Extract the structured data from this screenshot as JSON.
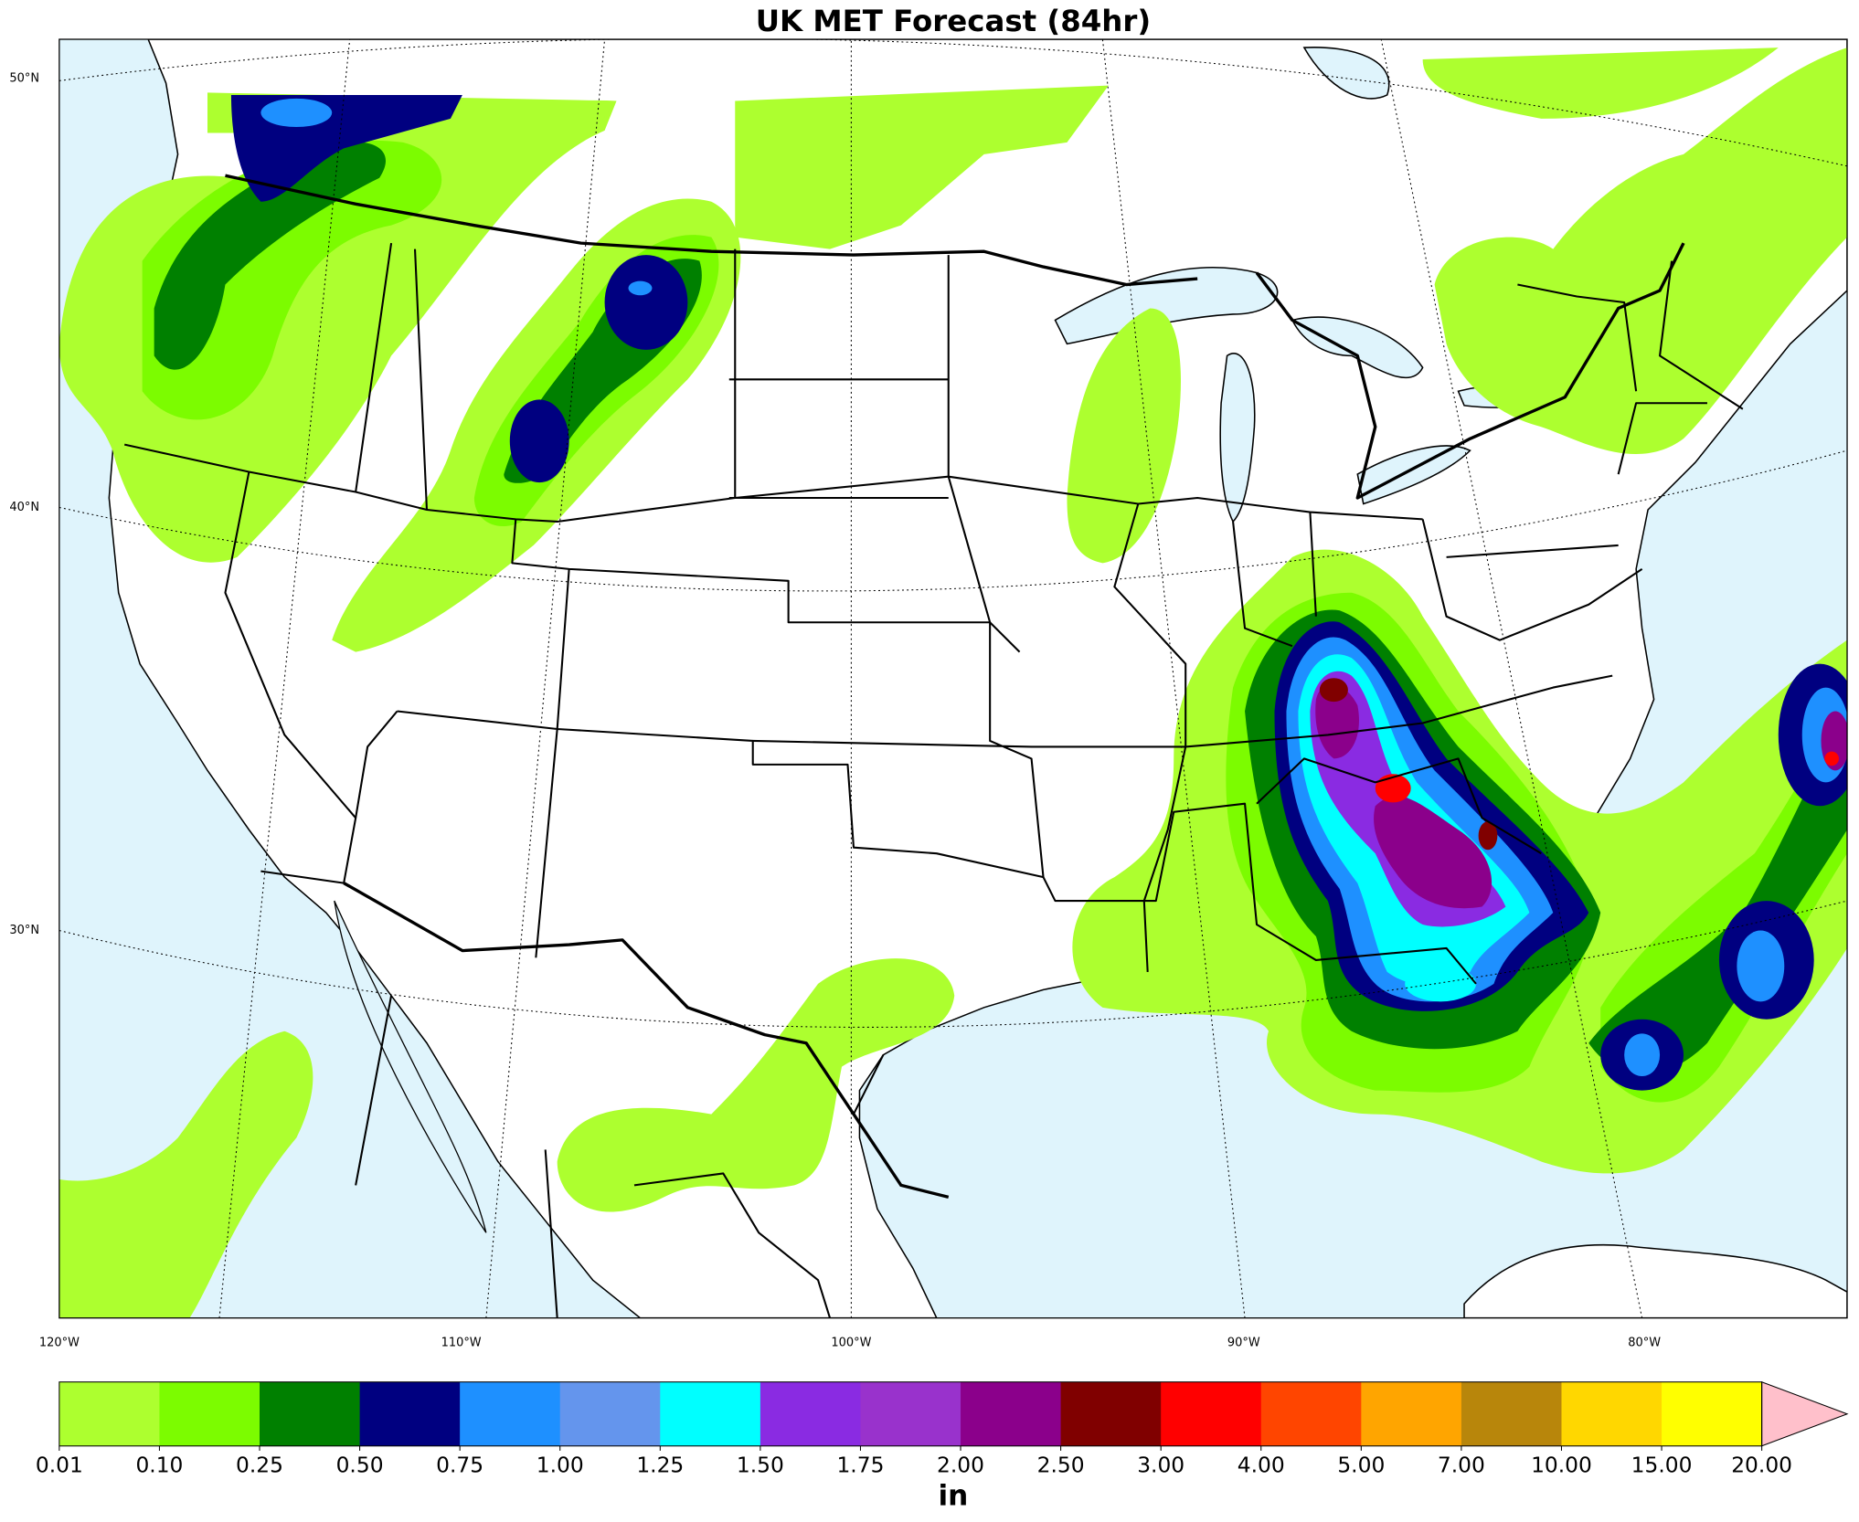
{
  "title": "UK MET Forecast (84hr)",
  "map": {
    "lat_labels": [
      "50°N",
      "40°N",
      "30°N"
    ],
    "lon_labels": [
      "120°W",
      "110°W",
      "100°W",
      "90°W",
      "80°W"
    ]
  },
  "colorbar": {
    "ticks": [
      0.01,
      {
        "value": 0.1,
        "label": "0.10"
      },
      0.25,
      {
        "value": 0.5,
        "label": "0.50"
      },
      0.75,
      {
        "value": 1,
        "label": "1.00"
      },
      1.25,
      {
        "value": 1.5,
        "label": "1.50"
      },
      1.75,
      {
        "value": 2,
        "label": "2.00"
      },
      {
        "value": 2.5,
        "label": "2.50"
      },
      {
        "value": 3,
        "label": "3.00"
      },
      {
        "value": 4,
        "label": "4.00"
      },
      {
        "value": 5,
        "label": "5.00"
      },
      {
        "value": 7,
        "label": "7.00"
      },
      {
        "value": 10,
        "label": "10.00"
      },
      {
        "value": 15,
        "label": "15.00"
      },
      {
        "value": 20,
        "label": "20.00"
      }
    ],
    "colors": [
      "#adff2f",
      "#7cfc00",
      "#008000",
      "#000080",
      "#1e90ff",
      "#6495ed",
      "#00ffff",
      "#8a2be2",
      "#9932cc",
      "#8b008b",
      "#800000",
      "#ff0000",
      "#ff4500",
      "#ffa500",
      "#b8860b",
      "#ffd700",
      "#ffff00"
    ],
    "over_color": "#ffc0cb",
    "label": "in"
  }
}
